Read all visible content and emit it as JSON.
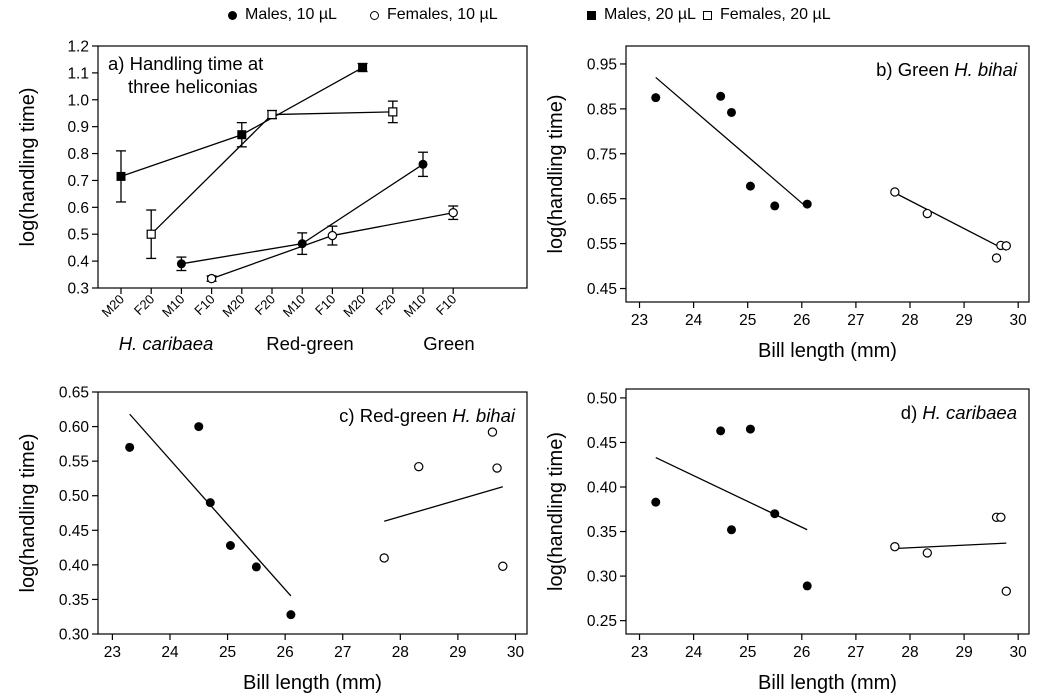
{
  "legend": [
    {
      "label": "Males, 10 µL",
      "marker": "filled-circle"
    },
    {
      "label": "Females, 10 µL",
      "marker": "open-circle"
    },
    {
      "label": "Males, 20 µL",
      "marker": "filled-square"
    },
    {
      "label": "Females, 20 µL",
      "marker": "open-square"
    }
  ],
  "chart_data": [
    {
      "id": "a",
      "type": "line",
      "title_lines": [
        "a) Handling time at",
        "three heliconias"
      ],
      "ylabel": "log(handling time)",
      "ylim": [
        0.3,
        1.2
      ],
      "yticks": [
        0.3,
        0.4,
        0.5,
        0.6,
        0.7,
        0.8,
        0.9,
        1.0,
        1.1,
        1.2
      ],
      "categories": [
        "M20",
        "F20",
        "M10",
        "F10",
        "M20",
        "F20",
        "M10",
        "F10",
        "M20",
        "F20",
        "M10",
        "F10"
      ],
      "groups": [
        {
          "label": "H. caribaea",
          "italic": true
        },
        {
          "label": "Red-green",
          "italic": false
        },
        {
          "label": "Green",
          "italic": false
        }
      ],
      "series": [
        {
          "marker": "filled-square",
          "x": [
            0,
            4,
            8
          ],
          "y": [
            0.715,
            0.87,
            1.12
          ],
          "err": [
            0.095,
            0.045,
            0.015
          ]
        },
        {
          "marker": "open-square",
          "x": [
            1,
            5,
            9
          ],
          "y": [
            0.5,
            0.945,
            0.955
          ],
          "err": [
            0.09,
            0.015,
            0.04
          ]
        },
        {
          "marker": "filled-circle",
          "x": [
            2,
            6,
            10
          ],
          "y": [
            0.39,
            0.465,
            0.76
          ],
          "err": [
            0.025,
            0.04,
            0.045
          ]
        },
        {
          "marker": "open-circle",
          "x": [
            3,
            7,
            11
          ],
          "y": [
            0.335,
            0.495,
            0.58
          ],
          "err": [
            0.01,
            0.035,
            0.025
          ]
        }
      ]
    },
    {
      "id": "b",
      "type": "scatter",
      "title": "b) Green ",
      "title_italic": "H. bihai",
      "xlabel": "Bill length (mm)",
      "ylabel": "log(handling time)",
      "xlim": [
        22.75,
        30.2
      ],
      "ylim": [
        0.42,
        0.99
      ],
      "xticks": [
        23,
        24,
        25,
        26,
        27,
        28,
        29,
        30
      ],
      "yticks": [
        0.45,
        0.55,
        0.65,
        0.75,
        0.85,
        0.95
      ],
      "yticklabels": [
        "0.45",
        "0.55",
        "0.65",
        "0.75",
        "0.85",
        "0.95"
      ],
      "males": {
        "x": [
          23.3,
          24.5,
          24.7,
          25.05,
          25.5,
          26.1
        ],
        "y": [
          0.875,
          0.878,
          0.842,
          0.678,
          0.634,
          0.638
        ]
      },
      "females": {
        "x": [
          27.72,
          28.32,
          29.6,
          29.68,
          29.78
        ],
        "y": [
          0.665,
          0.617,
          0.518,
          0.546,
          0.545
        ]
      },
      "male_fit": [
        [
          23.3,
          0.92
        ],
        [
          26.1,
          0.63
        ]
      ],
      "female_fit": [
        [
          27.72,
          0.663
        ],
        [
          29.78,
          0.535
        ]
      ]
    },
    {
      "id": "c",
      "type": "scatter",
      "title": "c) Red-green ",
      "title_italic": "H. bihai",
      "xlabel": "Bill length (mm)",
      "ylabel": "log(handling time)",
      "xlim": [
        22.75,
        30.2
      ],
      "ylim": [
        0.3,
        0.65
      ],
      "xticks": [
        23,
        24,
        25,
        26,
        27,
        28,
        29,
        30
      ],
      "yticks": [
        0.3,
        0.35,
        0.4,
        0.45,
        0.5,
        0.55,
        0.6,
        0.65
      ],
      "yticklabels": [
        "0.30",
        "0.35",
        "0.40",
        "0.45",
        "0.50",
        "0.55",
        "0.60",
        "0.65"
      ],
      "males": {
        "x": [
          23.3,
          24.5,
          24.7,
          25.05,
          25.5,
          26.1
        ],
        "y": [
          0.57,
          0.6,
          0.49,
          0.428,
          0.397,
          0.328
        ]
      },
      "females": {
        "x": [
          27.72,
          28.32,
          29.6,
          29.68,
          29.78
        ],
        "y": [
          0.41,
          0.542,
          0.592,
          0.54,
          0.398
        ]
      },
      "male_fit": [
        [
          23.3,
          0.618
        ],
        [
          26.1,
          0.355
        ]
      ],
      "female_fit": [
        [
          27.72,
          0.463
        ],
        [
          29.78,
          0.513
        ]
      ]
    },
    {
      "id": "d",
      "type": "scatter",
      "title": "d) ",
      "title_italic": "H. caribaea",
      "xlabel": "Bill length (mm)",
      "ylabel": "log(handling time)",
      "xlim": [
        22.75,
        30.2
      ],
      "ylim": [
        0.235,
        0.51
      ],
      "xticks": [
        23,
        24,
        25,
        26,
        27,
        28,
        29,
        30
      ],
      "yticks": [
        0.25,
        0.3,
        0.35,
        0.4,
        0.45,
        0.5
      ],
      "yticklabels": [
        "0.25",
        "0.30",
        "0.35",
        "0.40",
        "0.45",
        "0.50"
      ],
      "males": {
        "x": [
          23.3,
          24.5,
          24.7,
          25.05,
          25.5,
          26.1
        ],
        "y": [
          0.383,
          0.463,
          0.352,
          0.465,
          0.37,
          0.289
        ]
      },
      "females": {
        "x": [
          27.72,
          28.32,
          29.6,
          29.68,
          29.78
        ],
        "y": [
          0.333,
          0.326,
          0.366,
          0.366,
          0.283
        ]
      },
      "male_fit": [
        [
          23.3,
          0.433
        ],
        [
          26.1,
          0.352
        ]
      ],
      "female_fit": [
        [
          27.72,
          0.331
        ],
        [
          29.78,
          0.337
        ]
      ]
    }
  ]
}
